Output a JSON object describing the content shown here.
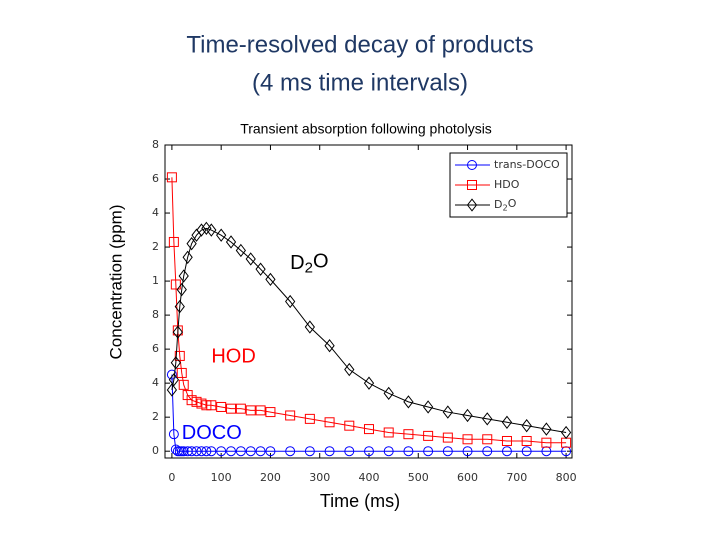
{
  "chart_data": {
    "type": "line",
    "title": [
      "Time-resolved decay of products",
      "(4 ms time intervals)"
    ],
    "subtitle": "Transient absorption following photolysis",
    "y_label": "Concentration (ppm)",
    "x_label": "Time (ms)",
    "x": [
      0,
      4,
      8,
      12,
      16,
      20,
      24,
      32,
      40,
      50,
      60,
      70,
      80,
      100,
      120,
      140,
      160,
      180,
      200,
      240,
      280,
      320,
      360,
      400,
      440,
      480,
      520,
      560,
      600,
      640,
      680,
      720,
      760,
      800
    ],
    "series": [
      {
        "name": "trans-DOCO",
        "color": "#0000ff",
        "marker": "circle",
        "values": [
          0.45,
          0.1,
          0.01,
          0.0,
          0.0,
          0.0,
          0.0,
          0.0,
          0.0,
          0.0,
          0.0,
          0.0,
          0.0,
          0.0,
          0.0,
          0.0,
          0.0,
          0.0,
          0.0,
          0.0,
          0.0,
          0.0,
          0.0,
          0.0,
          0.0,
          0.0,
          0.0,
          0.0,
          0.0,
          0.0,
          0.0,
          0.0,
          0.0,
          0.0
        ]
      },
      {
        "name": "HDO",
        "color": "#ff0000",
        "marker": "square",
        "values": [
          1.61,
          1.23,
          0.98,
          0.71,
          0.56,
          0.46,
          0.39,
          0.33,
          0.3,
          0.29,
          0.28,
          0.27,
          0.27,
          0.26,
          0.25,
          0.25,
          0.24,
          0.24,
          0.23,
          0.21,
          0.19,
          0.17,
          0.15,
          0.13,
          0.11,
          0.1,
          0.09,
          0.08,
          0.07,
          0.07,
          0.06,
          0.06,
          0.05,
          0.05
        ]
      },
      {
        "name": "D2O",
        "color": "#000000",
        "marker": "diamond",
        "values": [
          0.36,
          0.42,
          0.52,
          0.7,
          0.85,
          0.95,
          1.03,
          1.14,
          1.22,
          1.27,
          1.3,
          1.31,
          1.3,
          1.27,
          1.23,
          1.18,
          1.13,
          1.07,
          1.01,
          0.88,
          0.73,
          0.62,
          0.48,
          0.4,
          0.34,
          0.29,
          0.26,
          0.23,
          0.21,
          0.19,
          0.17,
          0.15,
          0.13,
          0.11
        ]
      }
    ],
    "annotations": [
      {
        "text": "D2O",
        "color": "#000000",
        "x": 240,
        "y": 1.1
      },
      {
        "text": "HOD",
        "color": "#ff0000",
        "x": 80,
        "y": 0.55
      },
      {
        "text": "DOCO",
        "color": "#0000ff",
        "x": 20,
        "y": 0.1
      }
    ],
    "xlim": [
      -14,
      812
    ],
    "ylim": [
      -0.04,
      1.8
    ],
    "xticks": [
      0,
      100,
      200,
      300,
      400,
      500,
      600,
      700,
      800
    ],
    "yticks": [
      0,
      {
        "value": 0.2,
        "label": "2"
      },
      {
        "value": 0.4,
        "label": "4"
      },
      {
        "value": 0.6,
        "label": "6"
      },
      {
        "value": 0.8,
        "label": "8"
      },
      1,
      {
        "value": 1.2,
        "label": "2"
      },
      {
        "value": 1.4,
        "label": "4"
      },
      {
        "value": 1.6,
        "label": "6"
      },
      {
        "value": 1.8,
        "label": "8"
      }
    ],
    "grid": false,
    "legend": "upper right"
  }
}
